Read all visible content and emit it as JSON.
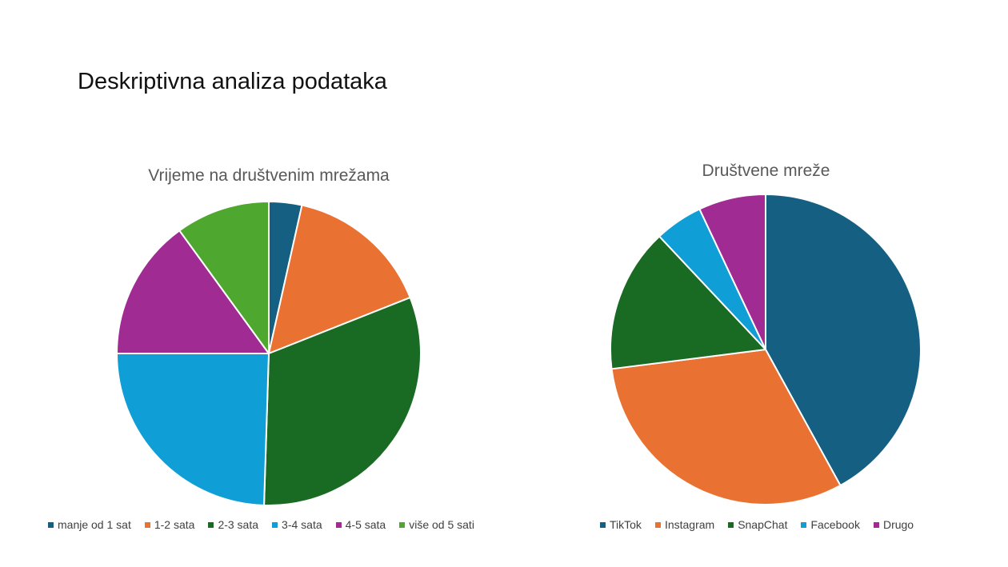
{
  "slide": {
    "title": "Deskriptivna analiza podataka"
  },
  "chart_data": [
    {
      "type": "pie",
      "title": "Vrijeme na društvenim mrežama",
      "legend_position": "bottom",
      "categories": [
        "manje od 1 sat",
        "1-2 sata",
        "2-3 sata",
        "3-4 sata",
        "4-5 sata",
        "više od 5 sati"
      ],
      "values": [
        3.5,
        15.5,
        31.5,
        24.5,
        15,
        10
      ],
      "colors": [
        "#156082",
        "#E97132",
        "#196B24",
        "#0F9ED5",
        "#A02B93",
        "#4EA72E"
      ]
    },
    {
      "type": "pie",
      "title": "Društvene mreže",
      "legend_position": "bottom",
      "categories": [
        "TikTok",
        "Instagram",
        "SnapChat",
        "Facebook",
        "Drugo"
      ],
      "values": [
        42,
        31,
        15,
        5,
        7
      ],
      "colors": [
        "#156082",
        "#E97132",
        "#196B24",
        "#0F9ED5",
        "#A02B93"
      ]
    }
  ]
}
